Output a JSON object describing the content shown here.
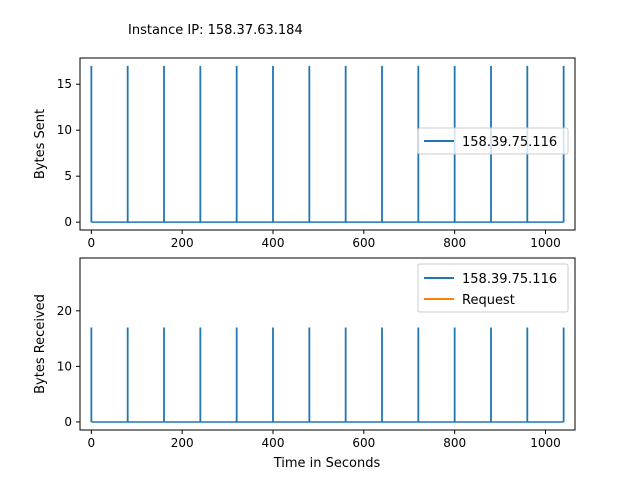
{
  "figure_title": "Instance IP: 158.37.63.184",
  "colors": {
    "series_sent": "#1f77b4",
    "series_recv": "#1f77b4",
    "request": "#ff7f0e",
    "axes": "#000000"
  },
  "chart_data": [
    {
      "type": "line",
      "ylabel": "Bytes Sent",
      "xlabel": "",
      "xlim": [
        -25,
        1065
      ],
      "ylim": [
        -0.85,
        17.85
      ],
      "xticks": [
        0,
        200,
        400,
        600,
        800,
        1000
      ],
      "yticks": [
        0,
        5,
        10,
        15
      ],
      "legend_position": "center-right",
      "series": [
        {
          "name": "158.39.75.116",
          "spikes_at": [
            0,
            80,
            160,
            240,
            320,
            400,
            480,
            560,
            640,
            720,
            800,
            880,
            960,
            1040
          ],
          "spike_value": 17,
          "baseline": 0
        }
      ]
    },
    {
      "type": "line",
      "ylabel": "Bytes Received",
      "xlabel": "Time in Seconds",
      "xlim": [
        -25,
        1065
      ],
      "ylim": [
        -1.45,
        29.5
      ],
      "xticks": [
        0,
        200,
        400,
        600,
        800,
        1000
      ],
      "yticks": [
        0,
        10,
        20
      ],
      "legend_position": "top-right",
      "series": [
        {
          "name": "158.39.75.116",
          "spikes_at": [
            0,
            80,
            160,
            240,
            320,
            400,
            480,
            560,
            640,
            720,
            800,
            880,
            960,
            1040
          ],
          "spike_value": 17,
          "baseline": 0
        },
        {
          "name": "Request",
          "spikes_at": [],
          "spike_value": 0,
          "baseline": 0
        }
      ]
    }
  ]
}
